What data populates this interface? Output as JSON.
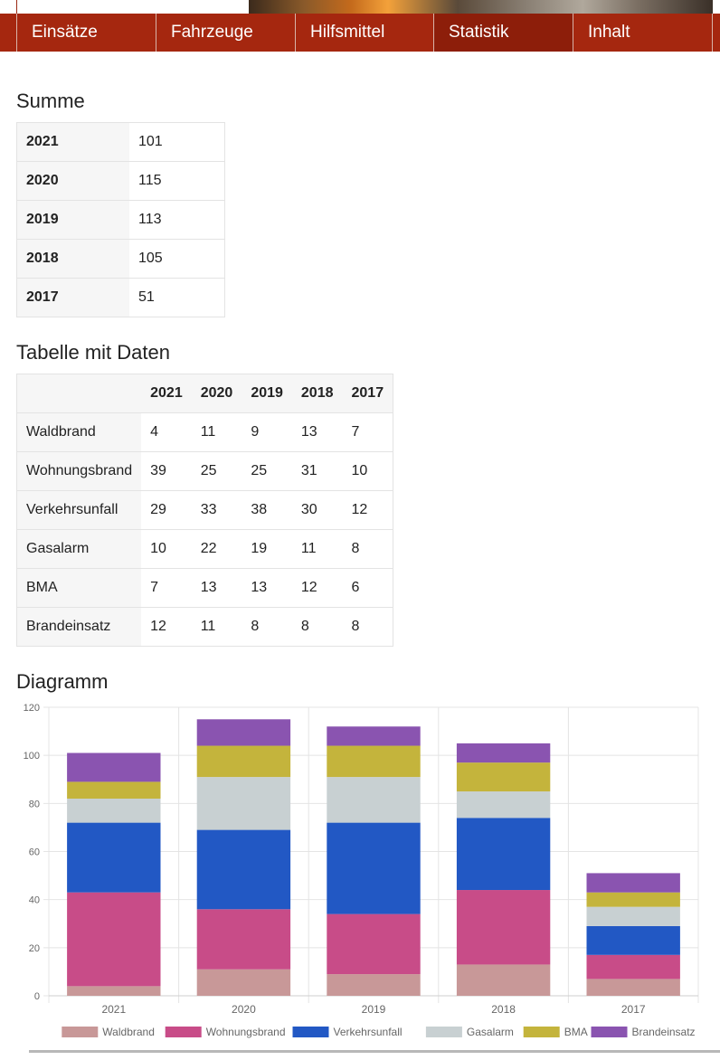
{
  "nav": {
    "items": [
      {
        "label": "Einsätze"
      },
      {
        "label": "Fahrzeuge"
      },
      {
        "label": "Hilfsmittel"
      },
      {
        "label": "Statistik"
      },
      {
        "label": "Inhalt"
      }
    ],
    "active_index": 3
  },
  "colors": {
    "nav_bg": "#a5270f",
    "nav_active": "#8d1e0a"
  },
  "summary": {
    "title": "Summe",
    "rows": [
      {
        "year": "2021",
        "total": "101"
      },
      {
        "year": "2020",
        "total": "115"
      },
      {
        "year": "2019",
        "total": "113"
      },
      {
        "year": "2018",
        "total": "105"
      },
      {
        "year": "2017",
        "total": "51"
      }
    ]
  },
  "data_table": {
    "title": "Tabelle mit Daten",
    "headers": [
      "",
      "2021",
      "2020",
      "2019",
      "2018",
      "2017"
    ],
    "rows": [
      {
        "label": "Waldbrand",
        "values": [
          "4",
          "11",
          "9",
          "13",
          "7"
        ]
      },
      {
        "label": "Wohnungsbrand",
        "values": [
          "39",
          "25",
          "25",
          "31",
          "10"
        ]
      },
      {
        "label": "Verkehrsunfall",
        "values": [
          "29",
          "33",
          "38",
          "30",
          "12"
        ]
      },
      {
        "label": "Gasalarm",
        "values": [
          "10",
          "22",
          "19",
          "11",
          "8"
        ]
      },
      {
        "label": "BMA",
        "values": [
          "7",
          "13",
          "13",
          "12",
          "6"
        ]
      },
      {
        "label": "Brandeinsatz",
        "values": [
          "12",
          "11",
          "8",
          "8",
          "8"
        ]
      }
    ]
  },
  "diagram": {
    "title": "Diagramm"
  },
  "chart_data": {
    "type": "bar",
    "stacked": true,
    "categories": [
      "2021",
      "2020",
      "2019",
      "2018",
      "2017"
    ],
    "ylim": [
      0,
      120
    ],
    "yticks": [
      0,
      20,
      40,
      60,
      80,
      100,
      120
    ],
    "legend_position": "bottom",
    "grid": true,
    "series": [
      {
        "name": "Waldbrand",
        "color": "#c89898",
        "values": [
          4,
          11,
          9,
          13,
          7
        ]
      },
      {
        "name": "Wohnungsbrand",
        "color": "#c84c88",
        "values": [
          39,
          25,
          25,
          31,
          10
        ]
      },
      {
        "name": "Verkehrsunfall",
        "color": "#2258c4",
        "values": [
          29,
          33,
          38,
          30,
          12
        ]
      },
      {
        "name": "Gasalarm",
        "color": "#c8d0d2",
        "values": [
          10,
          22,
          19,
          11,
          8
        ]
      },
      {
        "name": "BMA",
        "color": "#c4b43c",
        "values": [
          7,
          13,
          13,
          12,
          6
        ]
      },
      {
        "name": "Brandeinsatz",
        "color": "#8a54b0",
        "values": [
          12,
          11,
          8,
          8,
          8
        ]
      }
    ]
  }
}
